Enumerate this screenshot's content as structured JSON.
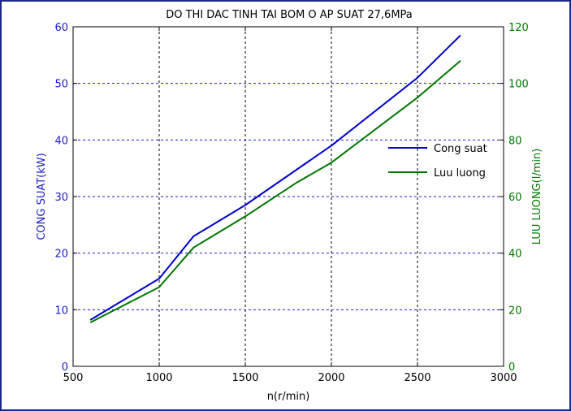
{
  "chart_data": {
    "type": "line",
    "title": "DO THI DAC TINH TAI BOM O AP SUAT 27,6MPa",
    "xlabel": "n(r/min)",
    "ylabel_left": "CONG SUAT(kW)",
    "ylabel_right": "LUU LUONG(l/min)",
    "xlim": [
      500,
      3000
    ],
    "ylim_left": [
      0,
      60
    ],
    "ylim_right": [
      0,
      120
    ],
    "xticks": [
      "500",
      "1000",
      "1500",
      "2000",
      "2500",
      "3000"
    ],
    "yticks_left": [
      "0",
      "10",
      "20",
      "30",
      "40",
      "50",
      "60"
    ],
    "yticks_right": [
      "0",
      "20",
      "40",
      "60",
      "80",
      "100",
      "120"
    ],
    "grid": true,
    "legend_position": "right",
    "series": [
      {
        "name": "Cong suat",
        "axis": "left",
        "color": "#0000cc",
        "x": [
          600,
          1000,
          1200,
          1500,
          2000,
          2500,
          2750
        ],
        "y": [
          8.2,
          15.5,
          23,
          28.5,
          39,
          51,
          58.5
        ]
      },
      {
        "name": "Luu luong",
        "axis": "right",
        "color": "#007700",
        "x": [
          600,
          1000,
          1200,
          1500,
          1800,
          2000,
          2500,
          2750
        ],
        "y": [
          15.5,
          28,
          42,
          53,
          65,
          72,
          95,
          108
        ]
      }
    ]
  }
}
